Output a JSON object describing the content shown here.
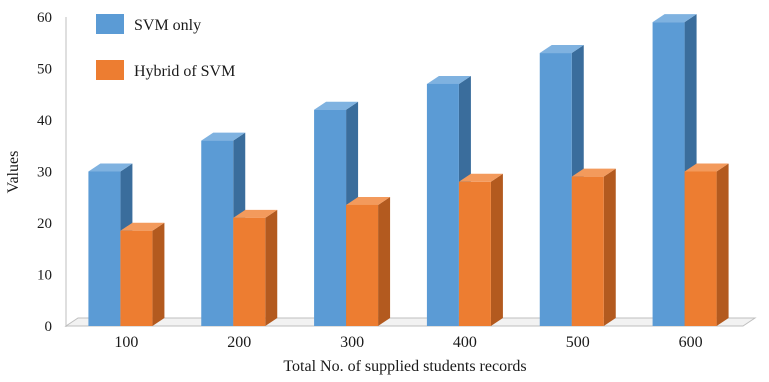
{
  "chart_data": {
    "type": "bar",
    "style": "3d-clustered-column",
    "categories": [
      "100",
      "200",
      "300",
      "400",
      "500",
      "600"
    ],
    "series": [
      {
        "name": "SVM only",
        "values": [
          30,
          36,
          42,
          47,
          53,
          59
        ],
        "color": "#5b9bd5",
        "side_color": "#3a6d9c",
        "top_color": "#7fb2e0"
      },
      {
        "name": "Hybrid of SVM",
        "values": [
          18.5,
          21,
          23.5,
          28,
          29,
          30
        ],
        "color": "#ed7d31",
        "side_color": "#b35a1f",
        "top_color": "#f39a5c"
      }
    ],
    "y_ticks": [
      "0",
      "10",
      "20",
      "30",
      "40",
      "50",
      "60"
    ],
    "ylim": [
      0,
      60
    ],
    "xlabel": "Total No. of supplied students records",
    "ylabel": "Values",
    "legend_position": "top-left-inside",
    "gridlines": false
  }
}
